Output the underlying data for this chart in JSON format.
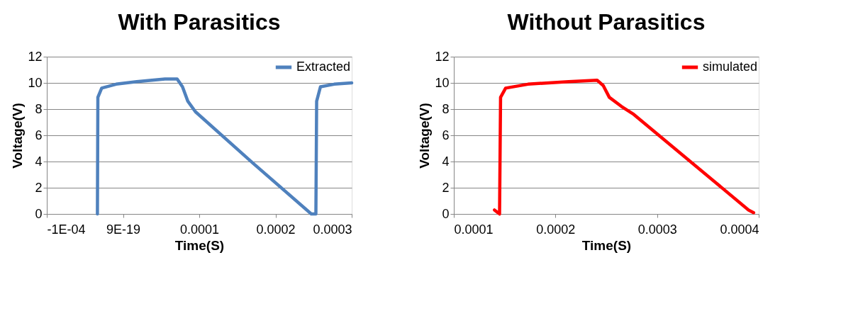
{
  "chart_data": [
    {
      "type": "line",
      "title": "With Parasitics",
      "xlabel": "Time(S)",
      "ylabel": "Voltage(V)",
      "xlim": [
        -0.0001,
        0.0003
      ],
      "xticks": [
        {
          "value": -0.0001,
          "label": "-1E-04"
        },
        {
          "value": 9e-19,
          "label": "9E-19"
        },
        0.0001,
        0.0002,
        0.0003
      ],
      "ylim": [
        0,
        12
      ],
      "yticks": [
        0,
        2,
        4,
        6,
        8,
        10,
        12
      ],
      "grid": "y",
      "legend": "top right",
      "marker": "none",
      "line_style": "solid",
      "series": [
        {
          "name": "Extracted",
          "color": "#4f81bd",
          "x": [
            -3.36e-05,
            -3.3e-05,
            -2.8e-05,
            -9.1e-06,
            1.8e-05,
            5.5e-05,
            7.1e-05,
            7.8e-05,
            8.5e-05,
            9.5e-05,
            0.00017,
            0.000247,
            0.000253,
            0.000254,
            0.000259,
            0.000277,
            0.0003
          ],
          "values": [
            0,
            8.9,
            9.6,
            9.9,
            10.1,
            10.3,
            10.3,
            9.7,
            8.6,
            7.8,
            3.9,
            0,
            0,
            8.6,
            9.7,
            9.9,
            10
          ]
        }
      ]
    },
    {
      "type": "line",
      "title": "Without Parasitics",
      "xlabel": "Time(S)",
      "ylabel": "Voltage(V)",
      "xlim": [
        0.0001,
        0.0004
      ],
      "xticks": [
        0.0001,
        0.0002,
        0.0003,
        0.0004
      ],
      "ylim": [
        0,
        12
      ],
      "yticks": [
        0,
        2,
        4,
        6,
        8,
        10,
        12
      ],
      "grid": "y",
      "legend": "top right",
      "marker": "none",
      "line_style": "solid",
      "series": [
        {
          "name": "simulated",
          "color": "#ff0000",
          "x": [
            0.00014,
            0.000145,
            0.000146,
            0.000151,
            0.000173,
            0.000213,
            0.000241,
            0.000247,
            0.000253,
            0.000265,
            0.000277,
            0.00039,
            0.000395
          ],
          "values": [
            0.3,
            0,
            8.9,
            9.6,
            9.9,
            10.1,
            10.2,
            9.8,
            8.9,
            8.2,
            7.6,
            0.3,
            0.1
          ]
        }
      ]
    }
  ]
}
